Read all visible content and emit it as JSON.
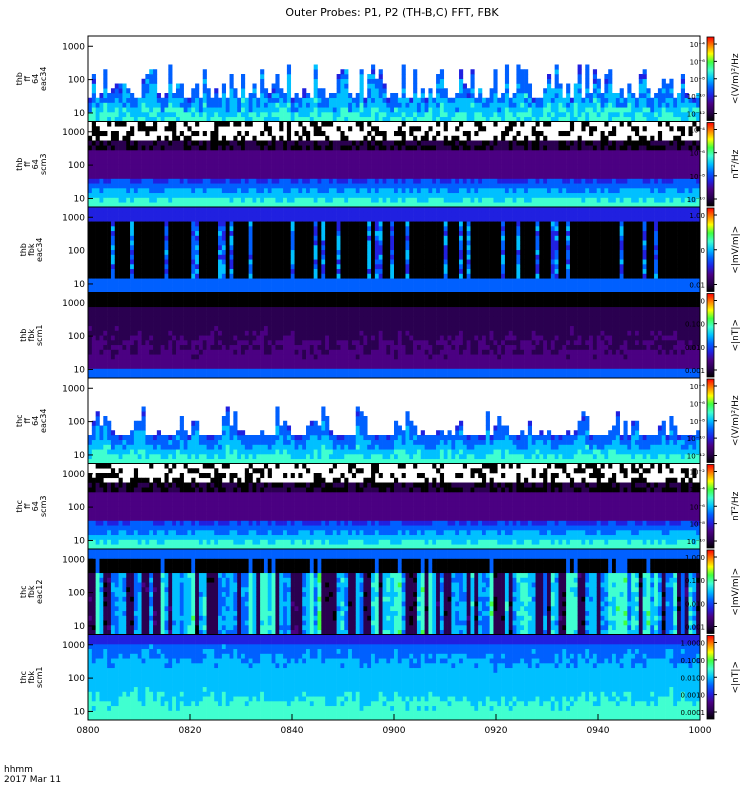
{
  "title": "Outer Probes: P1, P2 (TH-B,C) FFT, FBK",
  "footer": {
    "time_label": "hhmm",
    "date_label": "2017 Mar 11"
  },
  "colors": {
    "colormap": [
      "#000000",
      "#2a0050",
      "#4b0082",
      "#2020e0",
      "#0060ff",
      "#00c0ff",
      "#40ffd0",
      "#40ff40",
      "#ffff00",
      "#ff8000",
      "#ff0000"
    ]
  },
  "chart_data": {
    "type": "heatmap",
    "x_axis": {
      "range": [
        "0800",
        "1000"
      ],
      "ticks": [
        "0800",
        "0820",
        "0840",
        "0900",
        "0920",
        "0940",
        "1000"
      ]
    },
    "panels": [
      {
        "id": "thb-ff-eac34",
        "ylabel": [
          "thb",
          "ff",
          "64",
          "eac34"
        ],
        "y_ticks": [
          "10",
          "100",
          "1000"
        ],
        "y_scale": "log",
        "colorbar_label": "<(V/m)²/Hz",
        "colorbar_ticks": [
          "10⁻⁴",
          "10⁻⁶",
          "10⁻⁸",
          "10⁻¹⁰",
          "10⁻¹²"
        ],
        "pattern": "ff_e"
      },
      {
        "id": "thb-ff-scm3",
        "ylabel": [
          "thb",
          "ff",
          "64",
          "scm3"
        ],
        "y_ticks": [
          "10",
          "100",
          "1000"
        ],
        "y_scale": "log",
        "colorbar_label": "nT²/Hz",
        "colorbar_ticks": [
          "10⁻⁴",
          "10⁻⁶",
          "10⁻⁸",
          "10⁻¹⁰"
        ],
        "pattern": "ff_b"
      },
      {
        "id": "thb-fbk-eac34",
        "ylabel": [
          "thb",
          "fbk",
          "eac34"
        ],
        "y_ticks": [
          "10",
          "100",
          "1000"
        ],
        "y_scale": "log",
        "colorbar_label": "<|mV/m|>",
        "colorbar_ticks": [
          "1.00",
          "0.10",
          "0.01"
        ],
        "pattern": "fbk_e"
      },
      {
        "id": "thb-fbk-scm1",
        "ylabel": [
          "thb",
          "fbk",
          "scm1"
        ],
        "y_ticks": [
          "10",
          "100",
          "1000"
        ],
        "y_scale": "log",
        "colorbar_label": "<|nT|>",
        "colorbar_ticks": [
          "1.000",
          "0.100",
          "0.010",
          "0.001"
        ],
        "pattern": "fbk_b"
      },
      {
        "id": "thc-ff-eac34",
        "ylabel": [
          "thc",
          "ff",
          "64",
          "eac34"
        ],
        "y_ticks": [
          "10",
          "100",
          "1000"
        ],
        "y_scale": "log",
        "colorbar_label": "<(V/m)²/Hz",
        "colorbar_ticks": [
          "10⁻⁴",
          "10⁻⁶",
          "10⁻⁸",
          "10⁻¹⁰",
          "10⁻¹²"
        ],
        "pattern": "ff_e2"
      },
      {
        "id": "thc-ff-scm3",
        "ylabel": [
          "thc",
          "ff",
          "64",
          "scm3"
        ],
        "y_ticks": [
          "10",
          "100",
          "1000"
        ],
        "y_scale": "log",
        "colorbar_label": "nT²/Hz",
        "colorbar_ticks": [
          "10⁻²",
          "10⁻⁴",
          "10⁻⁶",
          "10⁻⁸",
          "10⁻¹⁰"
        ],
        "pattern": "ff_b"
      },
      {
        "id": "thc-fbk-eac12",
        "ylabel": [
          "thc",
          "fbk",
          "eac12"
        ],
        "y_ticks": [
          "10",
          "100",
          "1000"
        ],
        "y_scale": "log",
        "colorbar_label": "<|mV/m|>",
        "colorbar_ticks": [
          "1.000",
          "0.100",
          "0.010",
          "0.001"
        ],
        "pattern": "fbk_e2"
      },
      {
        "id": "thc-fbk-scm1",
        "ylabel": [
          "thc",
          "fbk",
          "scm1"
        ],
        "y_ticks": [
          "10",
          "100",
          "1000"
        ],
        "y_scale": "log",
        "colorbar_label": "<|nT|>",
        "colorbar_ticks": [
          "1.0000",
          "0.1000",
          "0.0100",
          "0.0010",
          "0.0001"
        ],
        "pattern": "fbk_b2"
      }
    ]
  }
}
